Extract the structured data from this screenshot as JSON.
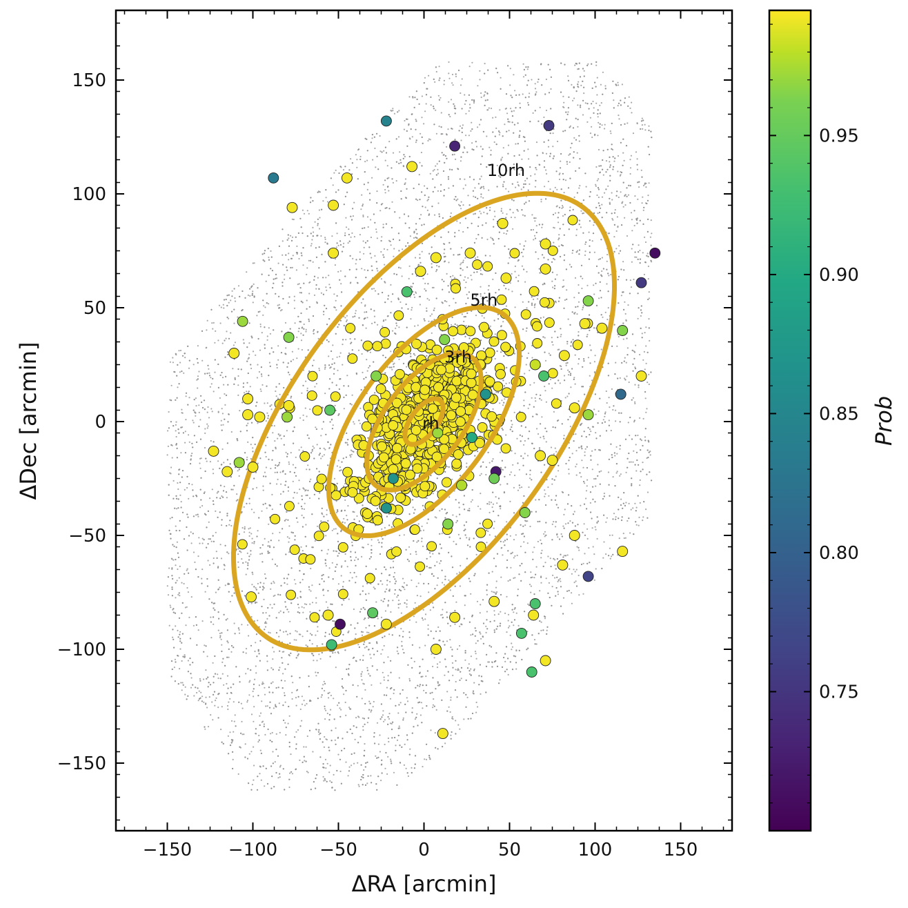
{
  "chart_data": {
    "type": "scatter",
    "xlabel": "ΔRA [arcmin]",
    "ylabel": "ΔDec [arcmin]",
    "xlim": [
      -180,
      180
    ],
    "ylim": [
      -180,
      180
    ],
    "xticks": [
      -150,
      -100,
      -50,
      0,
      50,
      100,
      150
    ],
    "yticks": [
      -150,
      -100,
      -50,
      0,
      50,
      100,
      150
    ],
    "xtick_labels": [
      "−150",
      "−100",
      "−50",
      "0",
      "50",
      "100",
      "150"
    ],
    "ytick_labels": [
      "−150",
      "−100",
      "−50",
      "0",
      "50",
      "100",
      "150"
    ],
    "background_field": {
      "description_color": "#8c8c8c",
      "center": [
        0,
        0
      ],
      "extent_x": [
        -145,
        130
      ],
      "extent_y": [
        -160,
        155
      ]
    },
    "ellipses": [
      {
        "label": "rh",
        "semi_major": 13.4,
        "semi_minor": 6.7,
        "angle_deg": 40
      },
      {
        "label": "3rh",
        "semi_major": 40.2,
        "semi_minor": 20.1,
        "angle_deg": 40
      },
      {
        "label": "5rh",
        "semi_major": 67,
        "semi_minor": 33.5,
        "angle_deg": 40
      },
      {
        "label": "10rh",
        "semi_major": 134,
        "semi_minor": 67,
        "angle_deg": 40
      }
    ],
    "ellipse_color": "#DAA520",
    "members_outliers": [
      {
        "x": -22,
        "y": 132,
        "prob": 0.83
      },
      {
        "x": 18,
        "y": 121,
        "prob": 0.73
      },
      {
        "x": 73,
        "y": 130,
        "prob": 0.75
      },
      {
        "x": -88,
        "y": 107,
        "prob": 0.82
      },
      {
        "x": -7,
        "y": 112,
        "prob": 0.99
      },
      {
        "x": -45,
        "y": 107,
        "prob": 0.99
      },
      {
        "x": -77,
        "y": 94,
        "prob": 0.99
      },
      {
        "x": -53,
        "y": 95,
        "prob": 0.99
      },
      {
        "x": 46,
        "y": 87,
        "prob": 0.99
      },
      {
        "x": 135,
        "y": 74,
        "prob": 0.71
      },
      {
        "x": 127,
        "y": 61,
        "prob": 0.75
      },
      {
        "x": 96,
        "y": 53,
        "prob": 0.94
      },
      {
        "x": 116,
        "y": 40,
        "prob": 0.94
      },
      {
        "x": 115,
        "y": 12,
        "prob": 0.8
      },
      {
        "x": 127,
        "y": 20,
        "prob": 0.99
      },
      {
        "x": 104,
        "y": 41,
        "prob": 0.99
      },
      {
        "x": 94,
        "y": 43,
        "prob": 0.99
      },
      {
        "x": 71,
        "y": 78,
        "prob": 0.99
      },
      {
        "x": 71,
        "y": 67,
        "prob": 0.99
      },
      {
        "x": -106,
        "y": 44,
        "prob": 0.95
      },
      {
        "x": -111,
        "y": 30,
        "prob": 0.99
      },
      {
        "x": -79,
        "y": 37,
        "prob": 0.94
      },
      {
        "x": -53,
        "y": 74,
        "prob": 0.99
      },
      {
        "x": -103,
        "y": 10,
        "prob": 0.99
      },
      {
        "x": -103,
        "y": 3,
        "prob": 0.99
      },
      {
        "x": -96,
        "y": 2,
        "prob": 0.99
      },
      {
        "x": -80,
        "y": 2,
        "prob": 0.95
      },
      {
        "x": -79,
        "y": 7,
        "prob": 0.99
      },
      {
        "x": -123,
        "y": -13,
        "prob": 0.99
      },
      {
        "x": -115,
        "y": -22,
        "prob": 0.99
      },
      {
        "x": -108,
        "y": -18,
        "prob": 0.95
      },
      {
        "x": -100,
        "y": -20,
        "prob": 0.99
      },
      {
        "x": -101,
        "y": -77,
        "prob": 0.99
      },
      {
        "x": -56,
        "y": -85,
        "prob": 0.99
      },
      {
        "x": -49,
        "y": -89,
        "prob": 0.71
      },
      {
        "x": -54,
        "y": -98,
        "prob": 0.9
      },
      {
        "x": -30,
        "y": -84,
        "prob": 0.92
      },
      {
        "x": -22,
        "y": -89,
        "prob": 0.99
      },
      {
        "x": 7,
        "y": -100,
        "prob": 0.99
      },
      {
        "x": 11,
        "y": -137,
        "prob": 0.99
      },
      {
        "x": 18,
        "y": -86,
        "prob": 0.99
      },
      {
        "x": 41,
        "y": -79,
        "prob": 0.99
      },
      {
        "x": 57,
        "y": -93,
        "prob": 0.91
      },
      {
        "x": 63,
        "y": -110,
        "prob": 0.91
      },
      {
        "x": 65,
        "y": -80,
        "prob": 0.91
      },
      {
        "x": 64,
        "y": -85,
        "prob": 0.99
      },
      {
        "x": 71,
        "y": -105,
        "prob": 0.99
      },
      {
        "x": 96,
        "y": -68,
        "prob": 0.76
      },
      {
        "x": 116,
        "y": -57,
        "prob": 0.99
      },
      {
        "x": 81,
        "y": -63,
        "prob": 0.99
      },
      {
        "x": 88,
        "y": -50,
        "prob": 0.99
      },
      {
        "x": 68,
        "y": -15,
        "prob": 0.99
      },
      {
        "x": 75,
        "y": -17,
        "prob": 0.99
      },
      {
        "x": 96,
        "y": 3,
        "prob": 0.95
      },
      {
        "x": 88,
        "y": 6,
        "prob": 0.99
      },
      {
        "x": 82,
        "y": 29,
        "prob": 0.99
      },
      {
        "x": 42,
        "y": -22,
        "prob": 0.72
      },
      {
        "x": 41,
        "y": -25,
        "prob": 0.93
      },
      {
        "x": 59,
        "y": -40,
        "prob": 0.94
      },
      {
        "x": 14,
        "y": -45,
        "prob": 0.94
      },
      {
        "x": 7,
        "y": 72,
        "prob": 0.99
      },
      {
        "x": 27,
        "y": 74,
        "prob": 0.99
      },
      {
        "x": 48,
        "y": 63,
        "prob": 0.99
      },
      {
        "x": -10,
        "y": 57,
        "prob": 0.91
      },
      {
        "x": -2,
        "y": 66,
        "prob": 0.99
      },
      {
        "x": 36,
        "y": 12,
        "prob": 0.85
      },
      {
        "x": 70,
        "y": 20,
        "prob": 0.91
      },
      {
        "x": 65,
        "y": 25,
        "prob": 0.97
      },
      {
        "x": -22,
        "y": -38,
        "prob": 0.85
      },
      {
        "x": -28,
        "y": 20,
        "prob": 0.94
      },
      {
        "x": 8,
        "y": -5,
        "prob": 0.95
      },
      {
        "x": 28,
        "y": -7,
        "prob": 0.88
      },
      {
        "x": 22,
        "y": -28,
        "prob": 0.96
      },
      {
        "x": -55,
        "y": 5,
        "prob": 0.92
      },
      {
        "x": 12,
        "y": 36,
        "prob": 0.94
      },
      {
        "x": -18,
        "y": -25,
        "prob": 0.85
      }
    ],
    "core_members_prob": 0.99,
    "core_members_count_approx": 620,
    "colorbar": {
      "label": "Prob",
      "vmin": 0.7,
      "vmax": 0.995,
      "ticks": [
        0.75,
        0.8,
        0.85,
        0.9,
        0.95
      ],
      "tick_labels": [
        "0.75",
        "0.80",
        "0.85",
        "0.90",
        "0.95"
      ],
      "colormap": "viridis"
    },
    "grid": false
  }
}
